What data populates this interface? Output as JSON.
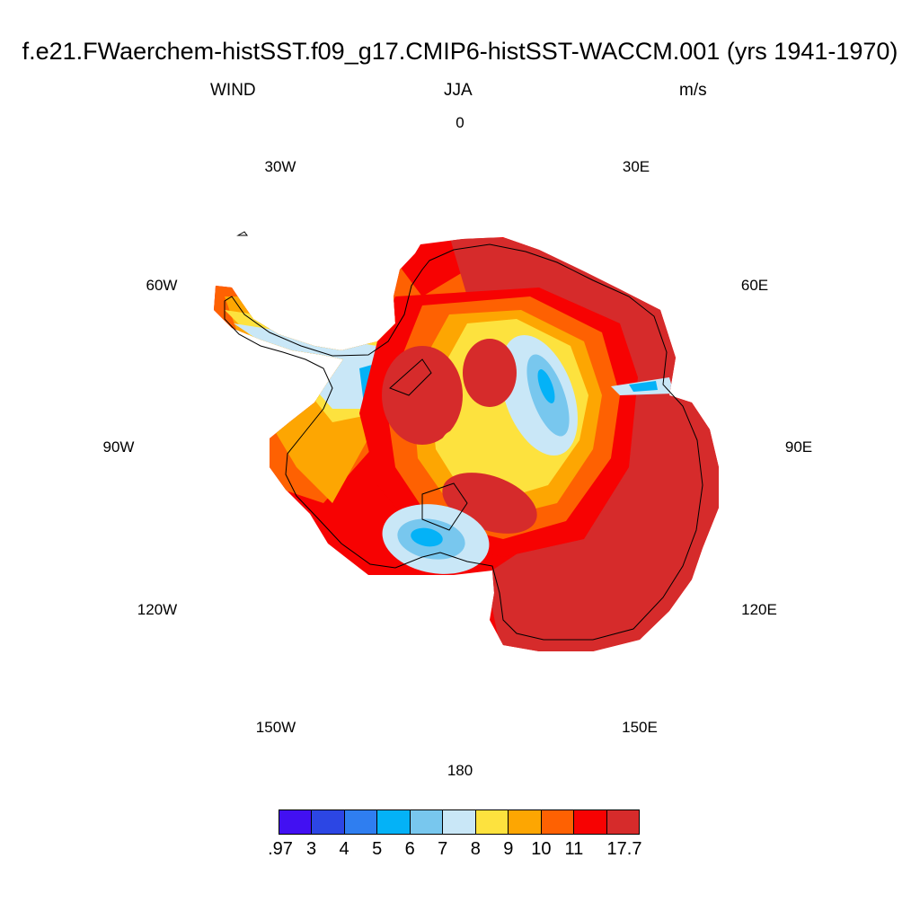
{
  "title": "f.e21.FWaerchem-histSST.f09_g17.CMIP6-histSST-WACCM.001 (yrs 1941-1970)",
  "left_label": "WIND",
  "center_label": "JJA",
  "right_label": "m/s",
  "longitude_labels": [
    "0",
    "30E",
    "60E",
    "90E",
    "120E",
    "150E",
    "180",
    "150W",
    "120W",
    "90W",
    "60W",
    "30W"
  ],
  "colorbar": {
    "labels": [
      ".97",
      "3",
      "4",
      "5",
      "6",
      "7",
      "8",
      "9",
      "10",
      "11",
      "17.7"
    ],
    "colors": [
      "#4210f2",
      "#2c46e4",
      "#2f7ef0",
      "#04b2f7",
      "#78c7ee",
      "#c9e7f7",
      "#fde23e",
      "#fda602",
      "#fe6102",
      "#f70202",
      "#d62b2b"
    ]
  },
  "chart_data": {
    "type": "heatmap",
    "projection": "south polar stereographic",
    "variable": "WIND",
    "season": "JJA",
    "units": "m/s",
    "levels": [
      0.97,
      3,
      4,
      5,
      6,
      7,
      8,
      9,
      10,
      11,
      17.7
    ],
    "colors": [
      "#4210f2",
      "#2c46e4",
      "#2f7ef0",
      "#04b2f7",
      "#78c7ee",
      "#c9e7f7",
      "#fde23e",
      "#fda602",
      "#fe6102",
      "#f70202",
      "#d62b2b"
    ],
    "summary": "Strongest winds (>11 m/s) over East Antarctic coastal slopes (30E-150E) and over the high interior ridges; weakest (5-8 m/s) over the Ross and Ronne-Filchner ice shelves, Antarctic Peninsula and along interior plateau domes."
  }
}
